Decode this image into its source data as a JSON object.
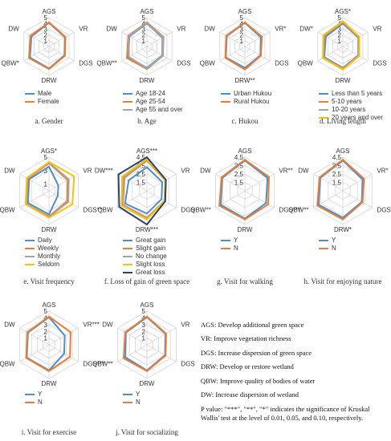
{
  "chart_data": [
    {
      "type": "radar",
      "title": "a. Gender",
      "axes": [
        "AGS",
        "VR",
        "DGS",
        "DRW",
        "QBW*",
        "DW"
      ],
      "rlim": [
        0,
        5
      ],
      "rticks": [
        1,
        2,
        3,
        4,
        5
      ],
      "series": [
        {
          "name": "Male",
          "color": "#4a90d0",
          "values": [
            4.1,
            3.2,
            3.1,
            3.8,
            3.8,
            3.5
          ]
        },
        {
          "name": "Female",
          "color": "#ed7d31",
          "values": [
            4.2,
            3.3,
            3.2,
            3.9,
            4.0,
            3.7
          ]
        }
      ]
    },
    {
      "type": "radar",
      "title": "b. Age",
      "axes": [
        "AGS",
        "VR",
        "DGS",
        "DRW",
        "QBW**",
        "DW"
      ],
      "rlim": [
        0,
        5
      ],
      "rticks": [
        1,
        2,
        3,
        4,
        5
      ],
      "series": [
        {
          "name": "Age 18-24",
          "color": "#4a90d0",
          "values": [
            4.0,
            3.1,
            3.1,
            3.7,
            3.7,
            3.5
          ]
        },
        {
          "name": "Age 25-54",
          "color": "#ed7d31",
          "values": [
            4.2,
            3.3,
            3.2,
            3.9,
            4.0,
            3.7
          ]
        },
        {
          "name": "Age 55 and over",
          "color": "#a5a5a5",
          "values": [
            4.1,
            3.2,
            3.2,
            3.8,
            3.6,
            3.6
          ]
        }
      ]
    },
    {
      "type": "radar",
      "title": "c. Hukou",
      "axes": [
        "AGS",
        "VR*",
        "DGS",
        "DRW**",
        "QBW",
        "DW"
      ],
      "rlim": [
        0,
        5
      ],
      "rticks": [
        1,
        2,
        3,
        4,
        5
      ],
      "series": [
        {
          "name": "Urban Hukou",
          "color": "#4a90d0",
          "values": [
            4.1,
            3.2,
            3.1,
            3.7,
            3.8,
            3.6
          ]
        },
        {
          "name": "Rural Hukou",
          "color": "#ed7d31",
          "values": [
            4.2,
            3.4,
            3.2,
            4.0,
            3.9,
            3.7
          ]
        }
      ]
    },
    {
      "type": "radar",
      "title": "d. Living length",
      "axes": [
        "AGS*",
        "VR",
        "DGS",
        "DRW",
        "QBW",
        "DW*"
      ],
      "rlim": [
        0,
        5
      ],
      "rticks": [
        1,
        2,
        3,
        4,
        5
      ],
      "series": [
        {
          "name": "Less than 5 years",
          "color": "#4a90d0",
          "values": [
            4.0,
            3.1,
            3.1,
            3.7,
            3.7,
            3.4
          ]
        },
        {
          "name": "5-10 years",
          "color": "#ed7d31",
          "values": [
            4.2,
            3.2,
            3.2,
            3.8,
            3.9,
            3.7
          ]
        },
        {
          "name": "10-20 years",
          "color": "#a5a5a5",
          "values": [
            4.3,
            3.3,
            3.2,
            3.9,
            3.9,
            3.8
          ]
        },
        {
          "name": "20 years and over",
          "color": "#ffc000",
          "values": [
            4.4,
            3.3,
            3.3,
            4.0,
            4.0,
            3.9
          ]
        }
      ]
    },
    {
      "type": "radar",
      "title": "e. Visit frequency",
      "axes": [
        "AGS*",
        "VR",
        "DGS**",
        "DRW",
        "QBW",
        "DW"
      ],
      "rlim": [
        0,
        5
      ],
      "rticks": [
        1,
        3,
        5
      ],
      "series": [
        {
          "name": "Daily",
          "color": "#4a90d0",
          "values": [
            3.6,
            1.6,
            1.5,
            3.5,
            3.6,
            3.4
          ]
        },
        {
          "name": "Weekly",
          "color": "#ed7d31",
          "values": [
            4.1,
            3.2,
            3.1,
            3.8,
            3.9,
            3.6
          ]
        },
        {
          "name": "Monthly",
          "color": "#a5a5a5",
          "values": [
            4.2,
            3.4,
            3.3,
            3.9,
            3.9,
            3.7
          ]
        },
        {
          "name": "Seldom",
          "color": "#ffc000",
          "values": [
            4.3,
            4.3,
            4.0,
            4.0,
            4.0,
            3.8
          ]
        }
      ]
    },
    {
      "type": "radar",
      "title": "f. Loss of gain of green space",
      "axes": [
        "AGS***",
        "VR",
        "DGS",
        "DRW***",
        "QBW",
        "DW***"
      ],
      "rlim": [
        0.5,
        4.5
      ],
      "rticks": [
        1.5,
        2.5,
        3.5,
        4.5
      ],
      "series": [
        {
          "name": "Great gain",
          "color": "#4a90d0",
          "values": [
            3.3,
            2.6,
            2.5,
            3.2,
            3.5,
            3.0
          ]
        },
        {
          "name": "Slight gain",
          "color": "#ed7d31",
          "values": [
            4.1,
            3.0,
            2.9,
            3.7,
            3.8,
            3.6
          ]
        },
        {
          "name": "No change",
          "color": "#a5a5a5",
          "values": [
            4.2,
            3.1,
            3.0,
            3.8,
            3.9,
            3.7
          ]
        },
        {
          "name": "Slight loss",
          "color": "#ffc000",
          "values": [
            4.3,
            3.0,
            2.9,
            3.9,
            4.0,
            3.9
          ]
        },
        {
          "name": "Great loss",
          "color": "#264478",
          "values": [
            4.5,
            3.1,
            3.0,
            4.5,
            4.3,
            4.4
          ]
        }
      ]
    },
    {
      "type": "radar",
      "title": "g. Visit for walking",
      "axes": [
        "AGS",
        "VR**",
        "DGS***",
        "DRW",
        "QBW**",
        "DW"
      ],
      "rlim": [
        0.5,
        4.5
      ],
      "rticks": [
        1.5,
        2.5,
        3.5,
        4.5
      ],
      "series": [
        {
          "name": "Y",
          "color": "#4a90d0",
          "values": [
            4.1,
            3.6,
            3.4,
            3.8,
            3.8,
            3.6
          ]
        },
        {
          "name": "N",
          "color": "#ed7d31",
          "values": [
            4.2,
            3.8,
            3.7,
            3.9,
            4.0,
            3.7
          ]
        }
      ]
    },
    {
      "type": "radar",
      "title": "h. Visit for enjoying nature",
      "axes": [
        "AGS",
        "VR*",
        "DGS",
        "DRW*",
        "QBW**",
        "DW"
      ],
      "rlim": [
        0.5,
        4.5
      ],
      "rticks": [
        1.5,
        2.5,
        3.5,
        4.5
      ],
      "series": [
        {
          "name": "Y",
          "color": "#4a90d0",
          "values": [
            4.1,
            3.2,
            3.1,
            3.7,
            3.8,
            3.6
          ]
        },
        {
          "name": "N",
          "color": "#ed7d31",
          "values": [
            4.2,
            3.4,
            3.2,
            3.9,
            4.0,
            3.7
          ]
        }
      ]
    },
    {
      "type": "radar",
      "title": "i. Visit for exercise",
      "axes": [
        "AGS",
        "VR***",
        "DGS***",
        "DRW",
        "QBW",
        "DW"
      ],
      "rlim": [
        0,
        5
      ],
      "rticks": [
        1,
        2,
        3,
        4,
        5
      ],
      "series": [
        {
          "name": "Y",
          "color": "#4a90d0",
          "values": [
            4.1,
            2.7,
            2.6,
            3.8,
            3.8,
            3.6
          ]
        },
        {
          "name": "N",
          "color": "#ed7d31",
          "values": [
            4.2,
            3.7,
            3.6,
            3.9,
            3.9,
            3.7
          ]
        }
      ]
    },
    {
      "type": "radar",
      "title": "j. Visit for socializing",
      "axes": [
        "AGS",
        "VR",
        "DGS",
        "DRW",
        "QBW**",
        "DW"
      ],
      "rlim": [
        0,
        5
      ],
      "rticks": [
        1,
        2,
        3,
        4,
        5
      ],
      "series": [
        {
          "name": "Y",
          "color": "#4a90d0",
          "values": [
            4.1,
            3.2,
            3.1,
            3.8,
            3.7,
            3.6
          ]
        },
        {
          "name": "N",
          "color": "#ed7d31",
          "values": [
            4.2,
            3.3,
            3.2,
            3.9,
            4.0,
            3.7
          ]
        }
      ]
    }
  ],
  "notes": [
    "AGS: Develop additional green space",
    "VR: Improve vegetation richness",
    "DGS: Increase dispersion of green space",
    "DRW: Develop or restore wetland",
    "QBW: Improve quality of bodies of water",
    "DW: Increase dispersion of wetland",
    "P value: \"***\", \"**\", \"*\" indicates the significance of Kruskal Wallis' test at the level of 0.01, 0.05, and 0.10, respectively."
  ]
}
